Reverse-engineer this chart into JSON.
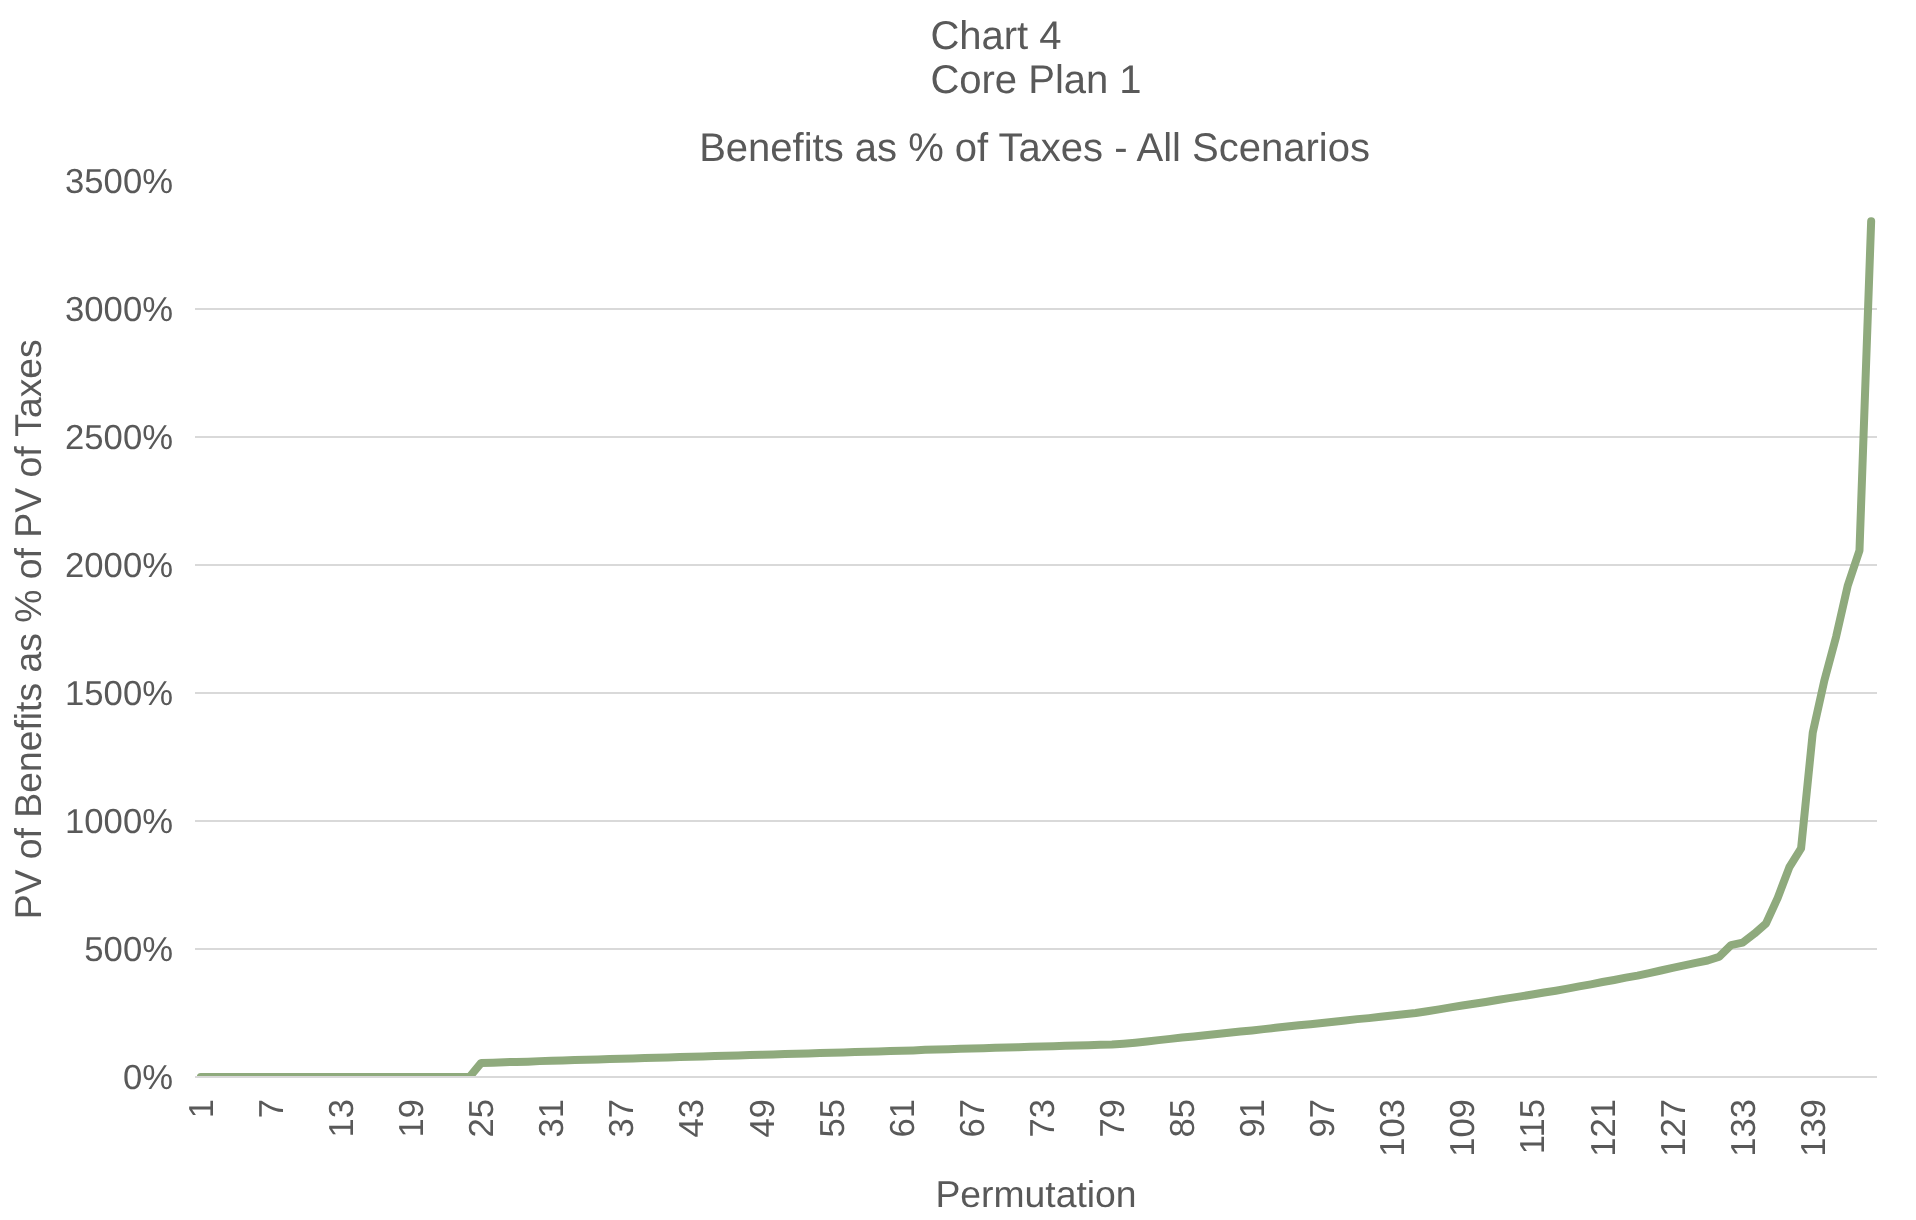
{
  "chart_data": {
    "type": "line",
    "title": "Chart 4\nCore Plan 1",
    "subtitle": "Benefits as % of Taxes - All Scenarios",
    "xlabel": "Permutation",
    "ylabel": "PV of Benefits as % of PV of Taxes",
    "categories": [
      "1",
      null,
      null,
      null,
      null,
      null,
      "7",
      null,
      null,
      null,
      null,
      null,
      "13",
      null,
      null,
      null,
      null,
      null,
      "19",
      null,
      null,
      null,
      null,
      null,
      "25",
      null,
      null,
      null,
      null,
      null,
      "31",
      null,
      null,
      null,
      null,
      null,
      "37",
      null,
      null,
      null,
      null,
      null,
      "43",
      null,
      null,
      null,
      null,
      null,
      "49",
      null,
      null,
      null,
      null,
      null,
      "55",
      null,
      null,
      null,
      null,
      null,
      "61",
      null,
      null,
      null,
      null,
      null,
      "67",
      null,
      null,
      null,
      null,
      null,
      "73",
      null,
      null,
      null,
      null,
      null,
      "79",
      null,
      null,
      null,
      null,
      null,
      "85",
      null,
      null,
      null,
      null,
      null,
      "91",
      null,
      null,
      null,
      null,
      null,
      "97",
      null,
      null,
      null,
      null,
      null,
      "103",
      null,
      null,
      null,
      null,
      null,
      "109",
      null,
      null,
      null,
      null,
      null,
      "115",
      null,
      null,
      null,
      null,
      null,
      "121",
      null,
      null,
      null,
      null,
      null,
      "127",
      null,
      null,
      null,
      null,
      null,
      "133",
      null,
      null,
      null,
      null,
      null,
      "139",
      null,
      null,
      null,
      null,
      null
    ],
    "series": [
      {
        "color": "#8faa7d",
        "values": [
          0,
          0,
          0,
          0,
          0,
          0,
          0,
          0,
          0,
          0,
          0,
          0,
          0,
          0,
          0,
          0,
          0,
          0,
          0,
          0,
          0,
          0,
          0,
          0,
          55,
          56,
          58,
          59,
          60,
          62,
          63,
          64,
          66,
          67,
          68,
          70,
          71,
          72,
          74,
          75,
          76,
          78,
          79,
          80,
          82,
          83,
          84,
          86,
          87,
          88,
          90,
          91,
          92,
          94,
          95,
          96,
          98,
          99,
          100,
          102,
          103,
          104,
          106,
          107,
          108,
          110,
          111,
          112,
          114,
          115,
          116,
          118,
          119,
          120,
          122,
          123,
          124,
          126,
          127,
          130,
          134,
          139,
          144,
          149,
          154,
          158,
          163,
          168,
          173,
          178,
          182,
          187,
          192,
          197,
          202,
          206,
          211,
          216,
          221,
          226,
          230,
          235,
          240,
          245,
          250,
          257,
          264,
          272,
          279,
          286,
          293,
          301,
          308,
          315,
          322,
          330,
          337,
          345,
          354,
          362,
          371,
          379,
          388,
          396,
          406,
          416,
          426,
          436,
          446,
          455,
          470,
          515,
          525,
          560,
          600,
          700,
          820,
          893,
          1345,
          1550,
          1720,
          1920,
          2057,
          3343
        ]
      }
    ],
    "ylim": [
      0,
      3500
    ],
    "yticks": [
      {
        "value": 0,
        "label": "0%"
      },
      {
        "value": 500,
        "label": "500%"
      },
      {
        "value": 1000,
        "label": "1000%"
      },
      {
        "value": 1500,
        "label": "1500%"
      },
      {
        "value": 2000,
        "label": "2000%"
      },
      {
        "value": 2500,
        "label": "2500%"
      },
      {
        "value": 3000,
        "label": "3000%"
      },
      {
        "value": 3500,
        "label": "3500%"
      }
    ],
    "grid": "y",
    "marker": "none",
    "line_style": "solid"
  }
}
